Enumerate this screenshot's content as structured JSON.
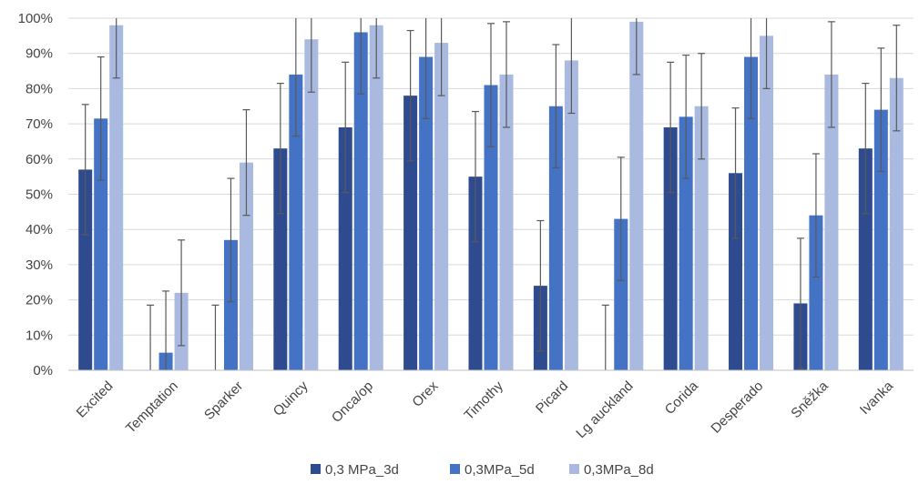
{
  "chart_data": {
    "type": "bar",
    "title": "",
    "xlabel": "",
    "ylabel": "",
    "ylim": [
      0,
      100
    ],
    "yticks": [
      0,
      10,
      20,
      30,
      40,
      50,
      60,
      70,
      80,
      90,
      100
    ],
    "ytick_labels": [
      "0%",
      "10%",
      "20%",
      "30%",
      "40%",
      "50%",
      "60%",
      "70%",
      "80%",
      "90%",
      "100%"
    ],
    "grid": true,
    "legend_position": "bottom",
    "categories": [
      "Excited",
      "Temptation",
      "Sparker",
      "Quincy",
      "Onca/op",
      "Orex",
      "Timothy",
      "Picard",
      "Lg auckland",
      "Corida",
      "Desperado",
      "Sněžka",
      "Ivanka"
    ],
    "series": [
      {
        "name": "0,3 MPa_3d",
        "color": "#2f4b8f",
        "values": [
          57,
          0,
          0,
          63,
          69,
          78,
          55,
          24,
          0,
          69,
          56,
          19,
          63
        ],
        "error": [
          18.5,
          18.5,
          18.5,
          18.5,
          18.5,
          18.5,
          18.5,
          18.5,
          18.5,
          18.5,
          18.5,
          18.5,
          18.5
        ]
      },
      {
        "name": "0,3MPa_5d",
        "color": "#4472c4",
        "values": [
          71.5,
          5,
          37,
          84,
          96,
          89,
          81,
          75,
          43,
          72,
          89,
          44,
          74
        ],
        "error": [
          17.5,
          17.5,
          17.5,
          17.5,
          17.5,
          17.5,
          17.5,
          17.5,
          17.5,
          17.5,
          17.5,
          17.5,
          17.5
        ]
      },
      {
        "name": "0,3MPa_8d",
        "color": "#a9b9e0",
        "values": [
          98,
          22,
          59,
          94,
          98,
          93,
          84,
          88,
          99,
          75,
          95,
          84,
          83
        ],
        "error": [
          15,
          15,
          15,
          15,
          15,
          15,
          15,
          15,
          15,
          15,
          15,
          15,
          15
        ]
      }
    ]
  }
}
